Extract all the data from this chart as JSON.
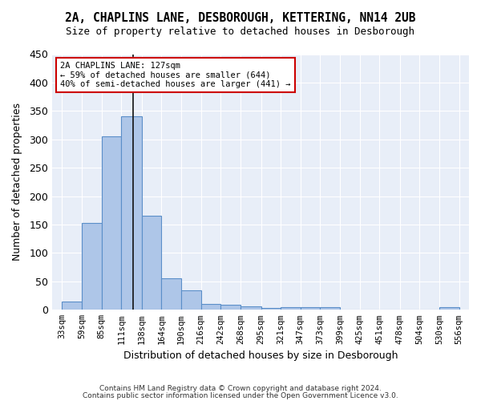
{
  "title": "2A, CHAPLINS LANE, DESBOROUGH, KETTERING, NN14 2UB",
  "subtitle": "Size of property relative to detached houses in Desborough",
  "xlabel": "Distribution of detached houses by size in Desborough",
  "ylabel": "Number of detached properties",
  "footnote1": "Contains HM Land Registry data © Crown copyright and database right 2024.",
  "footnote2": "Contains public sector information licensed under the Open Government Licence v3.0.",
  "bar_color": "#aec6e8",
  "bar_edge_color": "#5b8fc9",
  "background_color": "#e8eef8",
  "annotation_line_color": "#111111",
  "annotation_box_color": "#cc0000",
  "annotation_text": "2A CHAPLINS LANE: 127sqm\n← 59% of detached houses are smaller (644)\n40% of semi-detached houses are larger (441) →",
  "property_size": 127,
  "tick_labels": [
    "33sqm",
    "59sqm",
    "85sqm",
    "111sqm",
    "138sqm",
    "164sqm",
    "190sqm",
    "216sqm",
    "242sqm",
    "268sqm",
    "295sqm",
    "321sqm",
    "347sqm",
    "373sqm",
    "399sqm",
    "425sqm",
    "451sqm",
    "478sqm",
    "504sqm",
    "530sqm",
    "556sqm"
  ],
  "bin_edges": [
    33,
    59,
    85,
    111,
    138,
    164,
    190,
    216,
    242,
    268,
    295,
    321,
    347,
    373,
    399,
    425,
    451,
    478,
    504,
    530,
    556
  ],
  "values": [
    15,
    153,
    305,
    340,
    165,
    56,
    35,
    10,
    9,
    6,
    3,
    5,
    5,
    5,
    0,
    0,
    0,
    0,
    0,
    5
  ],
  "ylim": [
    0,
    450
  ],
  "yticks": [
    0,
    50,
    100,
    150,
    200,
    250,
    300,
    350,
    400,
    450
  ]
}
